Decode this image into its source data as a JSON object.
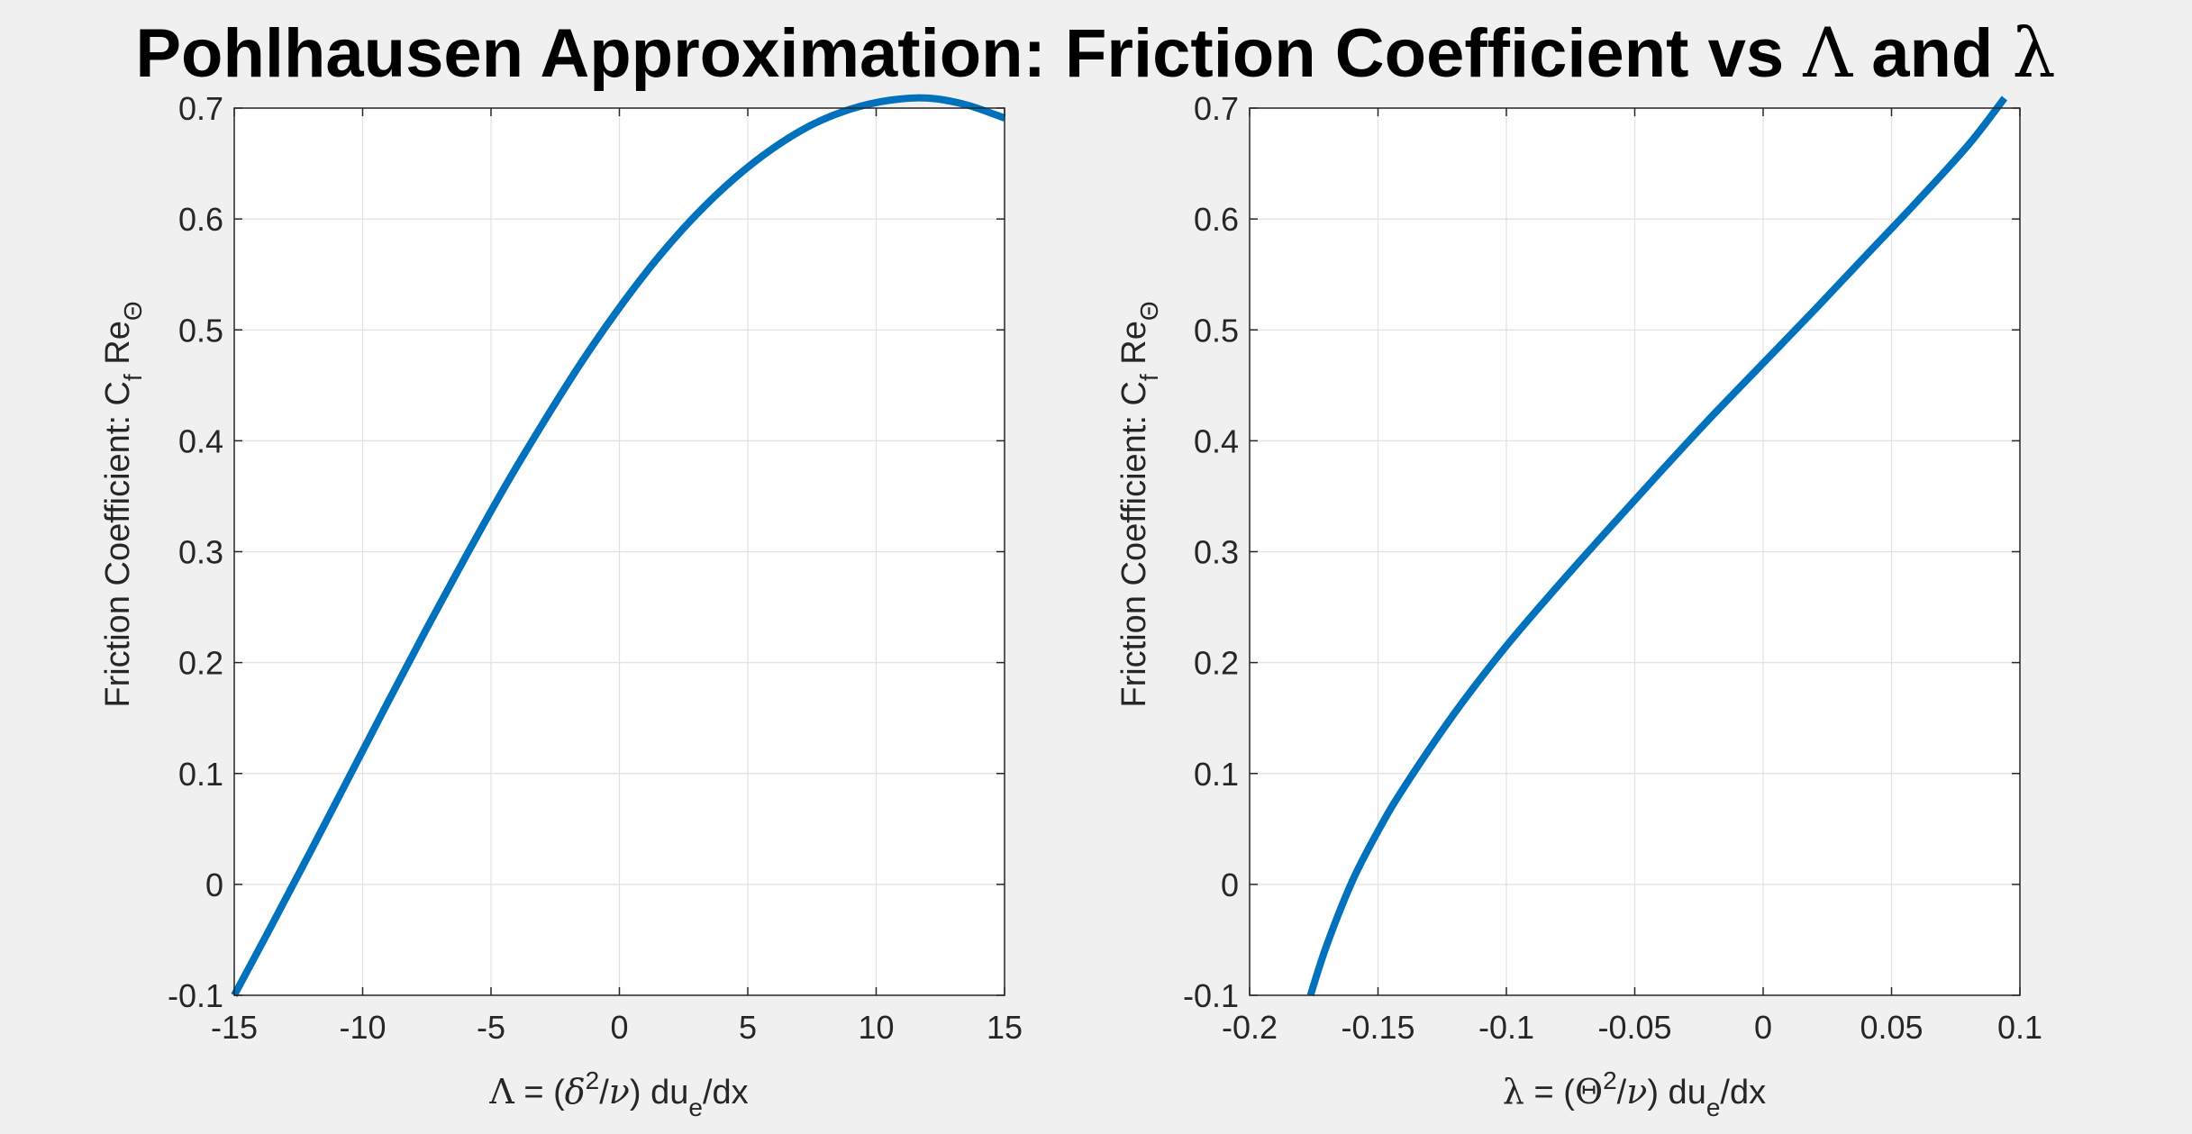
{
  "figure": {
    "title_prefix": "Pohlhausen Approximation: Friction Coefficient vs ",
    "title_sym1": "Λ",
    "title_mid": " and ",
    "title_sym2": "λ"
  },
  "colors": {
    "background": "#f0f0f0",
    "axes_bg": "#ffffff",
    "line": "#0072bd",
    "grid": "#e1e1e1",
    "axis": "#262626"
  },
  "chart_data": [
    {
      "type": "line",
      "title": "",
      "xlabel": {
        "sym": "Λ",
        "eq": " = (",
        "sym2": "δ",
        "sup": "2",
        "slash": "/",
        "sym3": "ν",
        "rest": ") du",
        "sub": "e",
        "tail": "/dx"
      },
      "ylabel": {
        "main": "Friction Coefficient: C",
        "sub1": "f",
        "mid": " Re",
        "sub2": "Θ"
      },
      "xlim": [
        -15,
        15
      ],
      "ylim": [
        -0.1,
        0.7
      ],
      "xticks": [
        -15,
        -10,
        -5,
        0,
        5,
        10,
        15
      ],
      "xtick_labels": [
        "-15",
        "-10",
        "-5",
        "0",
        "5",
        "10",
        "15"
      ],
      "yticks": [
        -0.1,
        0,
        0.1,
        0.2,
        0.3,
        0.4,
        0.5,
        0.6,
        0.7
      ],
      "ytick_labels": [
        "-0.1",
        "0",
        "0.1",
        "0.2",
        "0.3",
        "0.4",
        "0.5",
        "0.6",
        "0.7"
      ],
      "grid": true,
      "series": [
        {
          "x": [
            -15,
            -13.5,
            -12,
            -10.5,
            -9,
            -7.5,
            -6,
            -4.5,
            -3,
            -1.5,
            0,
            1.5,
            3,
            4.5,
            6,
            7.5,
            9,
            10.5,
            12,
            13.5,
            15
          ],
          "y": [
            -0.1,
            -0.035,
            0.031,
            0.098,
            0.165,
            0.231,
            0.295,
            0.357,
            0.415,
            0.47,
            0.52,
            0.565,
            0.604,
            0.637,
            0.664,
            0.685,
            0.699,
            0.707,
            0.709,
            0.703,
            0.691
          ]
        }
      ]
    },
    {
      "type": "line",
      "title": "",
      "xlabel": {
        "sym": "λ",
        "eq": " = (",
        "sym2": "Θ",
        "sup": "2",
        "slash": "/",
        "sym3": "ν",
        "rest": ") du",
        "sub": "e",
        "tail": "/dx"
      },
      "ylabel": {
        "main": "Friction Coefficient: C",
        "sub1": "f",
        "mid": " Re",
        "sub2": "Θ"
      },
      "xlim": [
        -0.2,
        0.1
      ],
      "ylim": [
        -0.1,
        0.7
      ],
      "xticks": [
        -0.2,
        -0.15,
        -0.1,
        -0.05,
        0,
        0.05,
        0.1
      ],
      "xtick_labels": [
        "-0.2",
        "-0.15",
        "-0.1",
        "-0.05",
        "0",
        "0.05",
        "0.1"
      ],
      "yticks": [
        -0.1,
        0,
        0.1,
        0.2,
        0.3,
        0.4,
        0.5,
        0.6,
        0.7
      ],
      "ytick_labels": [
        "-0.1",
        "0",
        "0.1",
        "0.2",
        "0.3",
        "0.4",
        "0.5",
        "0.6",
        "0.7"
      ],
      "grid": true,
      "series": [
        {
          "x": [
            -0.1763,
            -0.17,
            -0.16,
            -0.15,
            -0.14,
            -0.12,
            -0.1,
            -0.08,
            -0.06,
            -0.04,
            -0.02,
            0,
            0.02,
            0.04,
            0.06,
            0.08,
            0.094
          ],
          "y": [
            -0.1,
            -0.055,
            0.003,
            0.048,
            0.087,
            0.155,
            0.215,
            0.269,
            0.321,
            0.372,
            0.422,
            0.47,
            0.518,
            0.567,
            0.616,
            0.667,
            0.709
          ]
        }
      ]
    }
  ]
}
